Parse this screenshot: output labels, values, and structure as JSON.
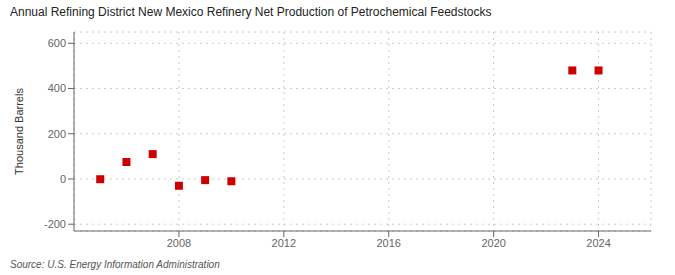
{
  "chart_data": {
    "type": "scatter",
    "title": "Annual Refining District New Mexico Refinery Net Production of Petrochemical Feedstocks",
    "ylabel": "Thousand Barrels",
    "source": "Source: U.S. Energy Information Administration",
    "x": [
      2005,
      2006,
      2007,
      2008,
      2009,
      2010,
      2023,
      2024
    ],
    "values": [
      -1,
      75,
      110,
      -30,
      -5,
      -10,
      480,
      480
    ],
    "color": "#cc0000",
    "marker": "square",
    "xlim": [
      2004,
      2026
    ],
    "xticks": [
      2008,
      2012,
      2016,
      2020,
      2024
    ],
    "ylim": [
      -230,
      650
    ],
    "yticks": [
      -200,
      0,
      200,
      400,
      600
    ],
    "grid": true
  }
}
